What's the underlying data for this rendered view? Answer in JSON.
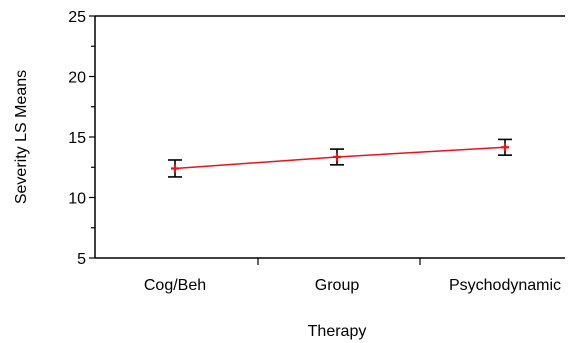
{
  "chart_data": {
    "type": "line",
    "xlabel": "Therapy",
    "ylabel": "Severity LS Means",
    "categories": [
      "Cog/Beh",
      "Group",
      "Psychodynamic"
    ],
    "series": [
      {
        "values": [
          12.4,
          13.35,
          14.15
        ],
        "lower": [
          11.7,
          12.7,
          13.5
        ],
        "upper": [
          13.1,
          14.0,
          14.8
        ],
        "color": "#e8141b"
      }
    ],
    "ylim": [
      5,
      25
    ],
    "yticks": [
      5,
      10,
      15,
      20,
      25
    ],
    "grid": false
  }
}
